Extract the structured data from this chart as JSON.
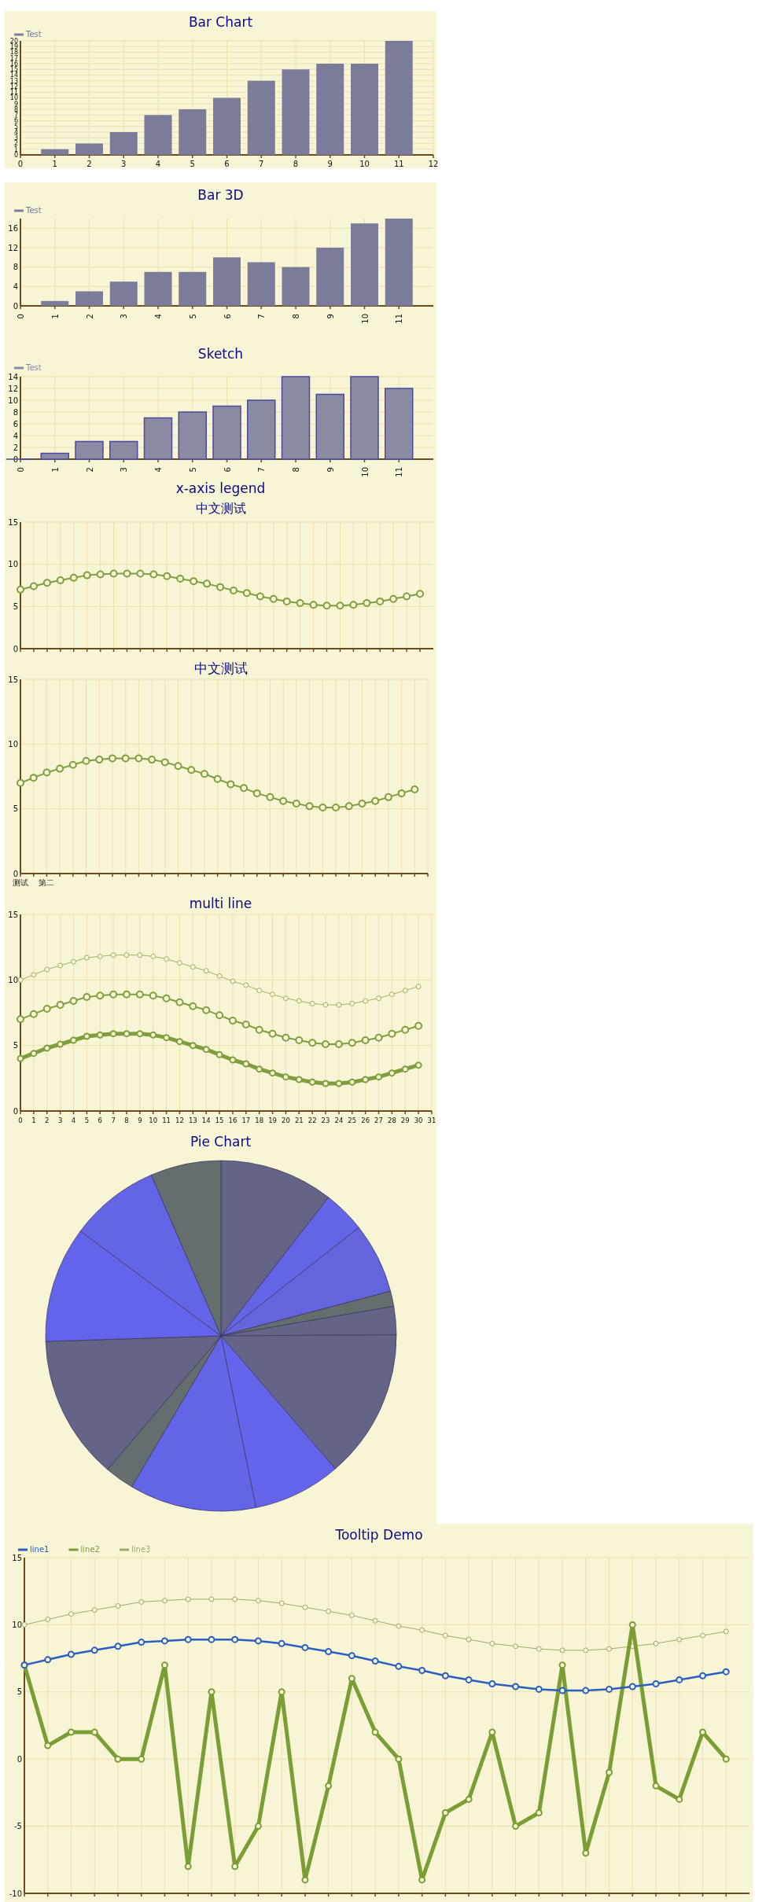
{
  "chart_data": [
    {
      "type": "bar",
      "title": "Bar Chart",
      "x": [
        1,
        2,
        3,
        4,
        5,
        6,
        7,
        8,
        9,
        10,
        11
      ],
      "series": [
        {
          "name": "Test",
          "color": "#7b7b9a",
          "values": [
            1,
            2,
            4,
            7,
            8,
            10,
            13,
            15,
            16,
            16,
            20
          ]
        }
      ],
      "xlim": [
        0,
        12
      ],
      "xticks": [
        0,
        1,
        2,
        3,
        4,
        5,
        6,
        7,
        8,
        9,
        10,
        11,
        12
      ],
      "ylim": [
        0,
        20
      ],
      "yticks": [
        0,
        1,
        2,
        3,
        4,
        5,
        6,
        7,
        8,
        9,
        10,
        11,
        12,
        13,
        14,
        15,
        16,
        17,
        18,
        19,
        20
      ],
      "grid": true,
      "legend": "top left"
    },
    {
      "type": "bar",
      "title": "Bar 3D",
      "categories": [
        "0",
        "1",
        "2",
        "3",
        "4",
        "5",
        "6",
        "7",
        "8",
        "9",
        "10",
        "11"
      ],
      "series": [
        {
          "name": "Test",
          "color": "#7b7b9a",
          "values": [
            0,
            1,
            3,
            5,
            7,
            7,
            10,
            9,
            8,
            12,
            17,
            18
          ]
        }
      ],
      "ylim": [
        0,
        18
      ],
      "yticks": [
        0,
        4,
        8,
        12,
        16
      ],
      "grid": true,
      "legend": "top left"
    },
    {
      "type": "bar",
      "title": "Sketch",
      "categories": [
        "0",
        "1",
        "2",
        "3",
        "4",
        "5",
        "6",
        "7",
        "8",
        "9",
        "10",
        "11"
      ],
      "series": [
        {
          "name": "Test",
          "color": "#8a8aa2",
          "values": [
            0,
            1,
            3,
            3,
            7,
            8,
            9,
            10,
            14,
            11,
            14,
            12
          ]
        }
      ],
      "ylim": [
        0,
        14
      ],
      "yticks": [
        0,
        2,
        4,
        6,
        8,
        10,
        12,
        14
      ],
      "grid": true,
      "legend": "top left"
    },
    {
      "type": "line",
      "title": "x-axis legend",
      "subtitle": "中文测试",
      "categories": [
        null,
        null,
        null,
        null,
        null,
        null,
        null,
        null,
        null,
        null,
        null,
        null,
        null,
        null,
        null,
        null,
        null,
        null,
        null,
        null,
        null,
        null,
        null,
        null,
        null,
        null,
        null,
        null,
        null,
        null,
        null
      ],
      "series": [
        {
          "color": "#7f9f3f",
          "values": [
            7.0,
            7.4,
            7.8,
            8.1,
            8.4,
            8.7,
            8.8,
            8.9,
            8.9,
            8.9,
            8.8,
            8.6,
            8.3,
            8.0,
            7.7,
            7.3,
            6.9,
            6.6,
            6.2,
            5.9,
            5.6,
            5.4,
            5.2,
            5.1,
            5.1,
            5.2,
            5.4,
            5.6,
            5.9,
            6.2,
            6.5
          ]
        }
      ],
      "ylim": [
        0,
        15
      ],
      "yticks": [
        0,
        5,
        10,
        15
      ],
      "grid": true,
      "marker": "circle"
    },
    {
      "type": "line",
      "title": "中文测试",
      "categories": [
        "测试",
        null,
        "第二",
        null,
        null,
        null,
        null,
        null,
        null,
        null,
        null,
        null,
        null,
        null,
        null,
        null,
        null,
        null,
        null,
        null,
        null,
        null,
        null,
        null,
        null,
        null,
        null,
        null,
        null,
        null,
        null,
        null
      ],
      "series": [
        {
          "color": "#7f9f3f",
          "values": [
            7.0,
            7.4,
            7.8,
            8.1,
            8.4,
            8.7,
            8.8,
            8.9,
            8.9,
            8.9,
            8.8,
            8.6,
            8.3,
            8.0,
            7.7,
            7.3,
            6.9,
            6.6,
            6.2,
            5.9,
            5.6,
            5.4,
            5.2,
            5.1,
            5.1,
            5.2,
            5.4,
            5.6,
            5.9,
            6.2,
            6.5,
            null
          ]
        }
      ],
      "ylim": [
        0,
        15
      ],
      "yticks": [
        0,
        5,
        10,
        15
      ],
      "grid": true,
      "marker": "circle"
    },
    {
      "type": "line",
      "title": "multi line",
      "x": [
        0,
        1,
        2,
        3,
        4,
        5,
        6,
        7,
        8,
        9,
        10,
        11,
        12,
        13,
        14,
        15,
        16,
        17,
        18,
        19,
        20,
        21,
        22,
        23,
        24,
        25,
        26,
        27,
        28,
        29,
        30
      ],
      "series": [
        {
          "color": "#a3b064",
          "values": [
            10.0,
            10.4,
            10.8,
            11.1,
            11.4,
            11.7,
            11.8,
            11.9,
            11.9,
            11.9,
            11.8,
            11.6,
            11.3,
            11.0,
            10.7,
            10.3,
            9.9,
            9.6,
            9.2,
            8.9,
            8.6,
            8.4,
            8.2,
            8.1,
            8.1,
            8.2,
            8.4,
            8.6,
            8.9,
            9.2,
            9.5
          ]
        },
        {
          "color": "#7f9f3f",
          "values": [
            7.0,
            7.4,
            7.8,
            8.1,
            8.4,
            8.7,
            8.8,
            8.9,
            8.9,
            8.9,
            8.8,
            8.6,
            8.3,
            8.0,
            7.7,
            7.3,
            6.9,
            6.6,
            6.2,
            5.9,
            5.6,
            5.4,
            5.2,
            5.1,
            5.1,
            5.2,
            5.4,
            5.6,
            5.9,
            6.2,
            6.5
          ]
        },
        {
          "color": "#7f9f3f",
          "values": [
            4.0,
            4.4,
            4.8,
            5.1,
            5.4,
            5.7,
            5.8,
            5.9,
            5.9,
            5.9,
            5.8,
            5.6,
            5.3,
            5.0,
            4.7,
            4.3,
            3.9,
            3.6,
            3.2,
            2.9,
            2.6,
            2.4,
            2.2,
            2.1,
            2.1,
            2.2,
            2.4,
            2.6,
            2.9,
            3.2,
            3.5
          ]
        }
      ],
      "xlim": [
        0,
        31
      ],
      "xticks": [
        0,
        1,
        2,
        3,
        4,
        5,
        6,
        7,
        8,
        9,
        10,
        11,
        12,
        13,
        14,
        15,
        16,
        17,
        18,
        19,
        20,
        21,
        22,
        23,
        24,
        25,
        26,
        27,
        28,
        29,
        30,
        31
      ],
      "ylim": [
        0,
        15
      ],
      "yticks": [
        0,
        5,
        10,
        15
      ],
      "grid": true,
      "marker": "circle"
    },
    {
      "type": "pie",
      "title": "Pie Chart",
      "categories": [
        null,
        null,
        null,
        null,
        null,
        null,
        null,
        null,
        null,
        null,
        null,
        null,
        null
      ],
      "values": [
        10.5,
        3.9,
        6.5,
        1.4,
        2.6,
        13.8,
        8.1,
        11.7,
        2.7,
        13.3,
        10.7,
        8.3,
        6.5
      ],
      "colors": [
        "#646487",
        "#6464e6",
        "#6464dd",
        "#646e6e",
        "#646487",
        "#646487",
        "#6464eb",
        "#6464e6",
        "#646e6e",
        "#646487",
        "#6464eb",
        "#6464e6",
        "#646e6e"
      ]
    },
    {
      "type": "line",
      "title": "Tooltip Demo",
      "categories": [
        null,
        null,
        null,
        null,
        null,
        null,
        null,
        null,
        null,
        null,
        null,
        null,
        null,
        null,
        null,
        null,
        null,
        null,
        null,
        null,
        null,
        null,
        null,
        null,
        null,
        null,
        null,
        null,
        null,
        null,
        null
      ],
      "series": [
        {
          "name": "line1",
          "color": "#2b5fbf",
          "values": [
            7.0,
            7.4,
            7.8,
            8.1,
            8.4,
            8.7,
            8.8,
            8.9,
            8.9,
            8.9,
            8.8,
            8.6,
            8.3,
            8.0,
            7.7,
            7.3,
            6.9,
            6.6,
            6.2,
            5.9,
            5.6,
            5.4,
            5.2,
            5.1,
            5.1,
            5.2,
            5.4,
            5.6,
            5.9,
            6.2,
            6.5
          ]
        },
        {
          "name": "line2",
          "color": "#7a9e35",
          "values": [
            7,
            1,
            2,
            2,
            0,
            0,
            7,
            -8,
            5,
            -8,
            -5,
            5,
            -9,
            -2,
            6,
            2,
            0,
            -9,
            -4,
            -3,
            2,
            -5,
            -4,
            7,
            -7,
            -1,
            10,
            -2,
            -3,
            2,
            0
          ]
        },
        {
          "name": "line3",
          "color": "#a3a86c",
          "values": [
            10.0,
            10.4,
            10.8,
            11.1,
            11.4,
            11.7,
            11.8,
            11.9,
            11.9,
            11.9,
            11.8,
            11.6,
            11.3,
            11.0,
            10.7,
            10.3,
            9.9,
            9.6,
            9.2,
            8.9,
            8.6,
            8.4,
            8.2,
            8.1,
            8.1,
            8.2,
            8.4,
            8.6,
            8.9,
            9.2,
            9.5
          ]
        }
      ],
      "ylim": [
        -10,
        15
      ],
      "yticks": [
        -10,
        -5,
        0,
        5,
        10,
        15
      ],
      "grid": true,
      "marker": "circle",
      "legend": "top left"
    }
  ]
}
